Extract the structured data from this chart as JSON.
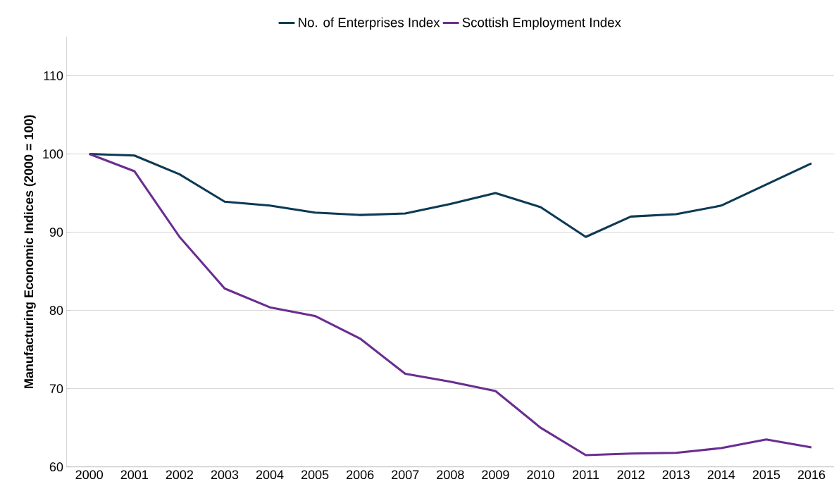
{
  "chart_data": {
    "type": "line",
    "ylabel": "Manufacturing Economic Indices (2000 = 100)",
    "categories": [
      "2000",
      "2001",
      "2002",
      "2003",
      "2004",
      "2005",
      "2006",
      "2007",
      "2008",
      "2009",
      "2010",
      "2011",
      "2012",
      "2013",
      "2014",
      "2015",
      "2016"
    ],
    "series": [
      {
        "name": "No. of Enterprises Index",
        "color": "#0d3a54",
        "values": [
          100,
          99.8,
          97.4,
          93.9,
          93.4,
          92.5,
          92.2,
          92.4,
          93.6,
          95.0,
          93.2,
          89.4,
          92.0,
          92.3,
          93.4,
          96.1,
          98.8
        ]
      },
      {
        "name": "Scottish Employment Index",
        "color": "#6a2d91",
        "values": [
          100,
          97.8,
          89.4,
          82.8,
          80.4,
          79.3,
          76.4,
          71.9,
          70.9,
          69.7,
          65.0,
          61.5,
          61.7,
          61.8,
          62.4,
          63.5,
          62.5
        ]
      }
    ],
    "ylim": [
      60,
      115
    ],
    "yticks": [
      60,
      70,
      80,
      90,
      100,
      110
    ],
    "grid": "y",
    "legend": "top",
    "marker": "none",
    "line_style": "solid"
  }
}
